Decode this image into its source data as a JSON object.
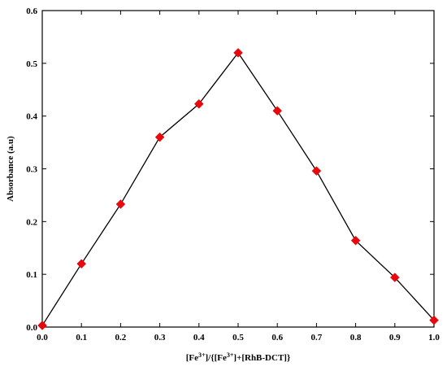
{
  "chart_data": {
    "type": "line",
    "title": "",
    "xlabel": {
      "parts": [
        {
          "t": "[Fe",
          "sup": false
        },
        {
          "t": "3+",
          "sup": true
        },
        {
          "t": "]/{[Fe",
          "sup": false
        },
        {
          "t": "3+",
          "sup": true
        },
        {
          "t": "]+[RhB-DCT]}",
          "sup": false
        }
      ]
    },
    "ylabel": "Absorbance (a.u)",
    "xlim": [
      0.0,
      1.0
    ],
    "ylim": [
      0.0,
      0.6
    ],
    "xticks": [
      "0.0",
      "0.1",
      "0.2",
      "0.3",
      "0.4",
      "0.5",
      "0.6",
      "0.7",
      "0.8",
      "0.9",
      "1.0"
    ],
    "yticks": [
      "0.0",
      "0.1",
      "0.2",
      "0.3",
      "0.4",
      "0.5",
      "0.6"
    ],
    "grid": false,
    "legend": "none",
    "marker": "diamond",
    "marker_color": "#e8080d",
    "line_color": "#000000",
    "series": [
      {
        "x": [
          0.0,
          0.1,
          0.2,
          0.3,
          0.4,
          0.5,
          0.6,
          0.7,
          0.8,
          0.9,
          1.0
        ],
        "y": [
          0.003,
          0.12,
          0.233,
          0.36,
          0.423,
          0.52,
          0.41,
          0.296,
          0.164,
          0.094,
          0.013
        ]
      }
    ]
  }
}
